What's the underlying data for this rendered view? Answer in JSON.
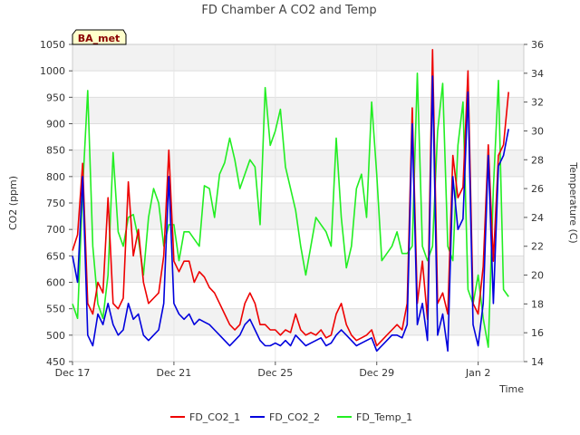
{
  "chart_data": {
    "type": "line",
    "title": "FD Chamber A CO2 and Temp",
    "badge": "BA_met",
    "xlabel": "Time",
    "ylabel": "CO2 (ppm)",
    "y2label": "Temperature (C)",
    "xlim": [
      0,
      17.8
    ],
    "ylim": [
      450,
      1050
    ],
    "y2lim": [
      14,
      36
    ],
    "x_ticks": [
      {
        "x": 0,
        "label": "Dec 17"
      },
      {
        "x": 4,
        "label": "Dec 21"
      },
      {
        "x": 8,
        "label": "Dec 25"
      },
      {
        "x": 12,
        "label": "Dec 29"
      },
      {
        "x": 16,
        "label": "Jan 2"
      }
    ],
    "y_ticks": [
      450,
      500,
      550,
      600,
      650,
      700,
      750,
      800,
      850,
      900,
      950,
      1000,
      1050
    ],
    "y2_ticks": [
      14,
      16,
      18,
      20,
      22,
      24,
      26,
      28,
      30,
      32,
      34,
      36
    ],
    "legend_position": "bottom",
    "grid": true,
    "series": [
      {
        "name": "FD_CO2_1",
        "axis": "left",
        "color": "#ee0000",
        "x": [
          0.0,
          0.2,
          0.4,
          0.6,
          0.8,
          1.0,
          1.2,
          1.4,
          1.6,
          1.8,
          2.0,
          2.2,
          2.4,
          2.6,
          2.8,
          3.0,
          3.2,
          3.4,
          3.6,
          3.8,
          4.0,
          4.2,
          4.4,
          4.6,
          4.8,
          5.0,
          5.2,
          5.4,
          5.6,
          5.8,
          6.0,
          6.2,
          6.4,
          6.6,
          6.8,
          7.0,
          7.2,
          7.4,
          7.6,
          7.8,
          8.0,
          8.2,
          8.4,
          8.6,
          8.8,
          9.0,
          9.2,
          9.4,
          9.6,
          9.8,
          10.0,
          10.2,
          10.4,
          10.6,
          10.8,
          11.0,
          11.2,
          11.4,
          11.6,
          11.8,
          12.0,
          12.2,
          12.4,
          12.6,
          12.8,
          13.0,
          13.2,
          13.4,
          13.6,
          13.8,
          14.0,
          14.2,
          14.4,
          14.6,
          14.8,
          15.0,
          15.2,
          15.4,
          15.6,
          15.8,
          16.0,
          16.2,
          16.4,
          16.6,
          16.8,
          17.0,
          17.2
        ],
        "values": [
          660,
          690,
          825,
          560,
          540,
          600,
          580,
          760,
          560,
          550,
          570,
          790,
          650,
          700,
          600,
          560,
          570,
          580,
          650,
          850,
          640,
          620,
          640,
          640,
          600,
          620,
          610,
          590,
          580,
          560,
          540,
          520,
          510,
          520,
          560,
          580,
          560,
          520,
          520,
          510,
          510,
          500,
          510,
          505,
          540,
          510,
          500,
          505,
          500,
          510,
          495,
          500,
          540,
          560,
          520,
          500,
          490,
          495,
          500,
          510,
          480,
          490,
          500,
          510,
          520,
          510,
          560,
          930,
          560,
          640,
          530,
          1040,
          560,
          580,
          540,
          840,
          760,
          780,
          1000,
          560,
          540,
          630,
          860,
          640,
          840,
          860,
          960
        ]
      },
      {
        "name": "FD_CO2_2",
        "axis": "left",
        "color": "#0000dd",
        "x": [
          0.0,
          0.2,
          0.4,
          0.6,
          0.8,
          1.0,
          1.2,
          1.4,
          1.6,
          1.8,
          2.0,
          2.2,
          2.4,
          2.6,
          2.8,
          3.0,
          3.2,
          3.4,
          3.6,
          3.8,
          4.0,
          4.2,
          4.4,
          4.6,
          4.8,
          5.0,
          5.2,
          5.4,
          5.6,
          5.8,
          6.0,
          6.2,
          6.4,
          6.6,
          6.8,
          7.0,
          7.2,
          7.4,
          7.6,
          7.8,
          8.0,
          8.2,
          8.4,
          8.6,
          8.8,
          9.0,
          9.2,
          9.4,
          9.6,
          9.8,
          10.0,
          10.2,
          10.4,
          10.6,
          10.8,
          11.0,
          11.2,
          11.4,
          11.6,
          11.8,
          12.0,
          12.2,
          12.4,
          12.6,
          12.8,
          13.0,
          13.2,
          13.4,
          13.6,
          13.8,
          14.0,
          14.2,
          14.4,
          14.6,
          14.8,
          15.0,
          15.2,
          15.4,
          15.6,
          15.8,
          16.0,
          16.2,
          16.4,
          16.6,
          16.8,
          17.0,
          17.2
        ],
        "values": [
          650,
          600,
          800,
          500,
          480,
          540,
          520,
          560,
          520,
          500,
          510,
          560,
          530,
          540,
          500,
          490,
          500,
          510,
          560,
          800,
          560,
          540,
          530,
          540,
          520,
          530,
          525,
          520,
          510,
          500,
          490,
          480,
          490,
          500,
          520,
          530,
          510,
          490,
          480,
          480,
          485,
          480,
          490,
          480,
          500,
          490,
          480,
          485,
          490,
          495,
          480,
          485,
          500,
          510,
          500,
          490,
          480,
          485,
          490,
          495,
          470,
          480,
          490,
          500,
          500,
          495,
          520,
          900,
          520,
          560,
          490,
          990,
          500,
          540,
          470,
          800,
          700,
          720,
          960,
          520,
          480,
          560,
          840,
          560,
          820,
          840,
          890
        ]
      },
      {
        "name": "FD_Temp_1",
        "axis": "right",
        "color": "#22ee22",
        "x": [
          0.0,
          0.2,
          0.4,
          0.6,
          0.8,
          1.0,
          1.2,
          1.4,
          1.6,
          1.8,
          2.0,
          2.2,
          2.4,
          2.6,
          2.8,
          3.0,
          3.2,
          3.4,
          3.6,
          3.8,
          4.0,
          4.2,
          4.4,
          4.6,
          4.8,
          5.0,
          5.2,
          5.4,
          5.6,
          5.8,
          6.0,
          6.2,
          6.4,
          6.6,
          6.8,
          7.0,
          7.2,
          7.4,
          7.6,
          7.8,
          8.0,
          8.2,
          8.4,
          8.6,
          8.8,
          9.0,
          9.2,
          9.4,
          9.6,
          9.8,
          10.0,
          10.2,
          10.4,
          10.6,
          10.8,
          11.0,
          11.2,
          11.4,
          11.6,
          11.8,
          12.0,
          12.2,
          12.4,
          12.6,
          12.8,
          13.0,
          13.2,
          13.4,
          13.6,
          13.8,
          14.0,
          14.2,
          14.4,
          14.6,
          14.8,
          15.0,
          15.2,
          15.4,
          15.6,
          15.8,
          16.0,
          16.2,
          16.4,
          16.6,
          16.8,
          17.0,
          17.2
        ],
        "values": [
          18,
          17,
          26,
          32.8,
          22,
          18,
          17,
          20,
          28.5,
          23,
          22,
          24,
          24.2,
          22.5,
          20,
          24,
          26,
          25,
          22,
          23.5,
          23.5,
          21,
          23,
          23,
          22.5,
          22,
          26.2,
          26,
          24,
          27,
          27.8,
          29.5,
          28,
          26,
          27,
          28,
          27.5,
          23.5,
          33,
          29,
          30,
          31.5,
          27.5,
          26,
          24.5,
          22,
          20,
          22,
          24,
          23.5,
          23,
          22,
          29.5,
          24,
          20.5,
          22,
          26,
          27,
          24,
          32,
          27,
          21,
          21.5,
          22,
          23,
          21.5,
          21.5,
          22,
          34,
          22,
          21,
          22,
          30,
          33.3,
          22,
          21,
          29,
          32,
          19,
          18,
          20,
          17,
          15,
          26,
          33.5,
          19,
          18.5
        ]
      }
    ]
  }
}
